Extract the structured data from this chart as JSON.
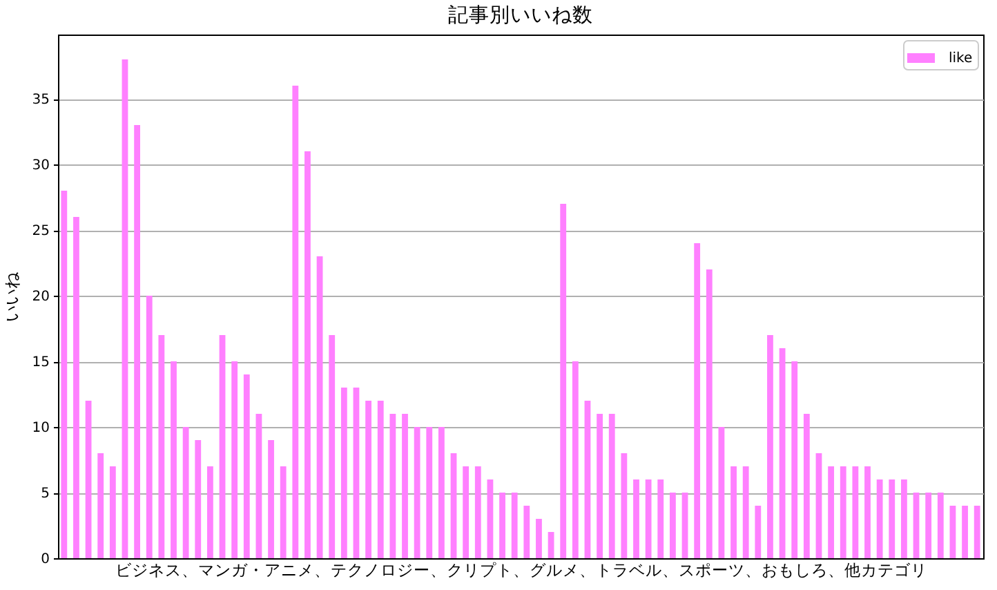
{
  "chart_data": {
    "type": "bar",
    "title": "記事別いいね数",
    "xlabel": "ビジネス、マンガ・アニメ、テクノロジー、クリプト、グルメ、トラベル、スポーツ、おもしろ、他カテゴリ",
    "ylabel": "いいね",
    "categories": [
      null,
      null,
      null,
      null,
      null,
      null,
      null,
      null,
      null,
      null,
      null,
      null,
      null,
      null,
      null,
      null,
      null,
      null,
      null,
      null,
      null,
      null,
      null,
      null,
      null,
      null,
      null,
      null,
      null,
      null,
      null,
      null,
      null,
      null,
      null,
      null,
      null,
      null,
      null,
      null,
      null,
      null,
      null,
      null,
      null,
      null,
      null,
      null,
      null,
      null,
      null,
      null,
      null,
      null,
      null,
      null,
      null,
      null,
      null,
      null,
      null,
      null,
      null,
      null,
      null,
      null,
      null,
      null,
      null,
      null,
      null,
      null,
      null,
      null,
      null,
      null
    ],
    "series": [
      {
        "name": "like",
        "color": "#ff80ff",
        "values": [
          28,
          26,
          12,
          8,
          7,
          38,
          33,
          20,
          17,
          15,
          10,
          9,
          7,
          17,
          15,
          14,
          11,
          9,
          7,
          36,
          31,
          23,
          17,
          13,
          13,
          12,
          12,
          11,
          11,
          10,
          10,
          10,
          8,
          7,
          7,
          6,
          5,
          5,
          4,
          3,
          2,
          27,
          15,
          12,
          11,
          11,
          8,
          6,
          6,
          6,
          5,
          5,
          24,
          22,
          10,
          7,
          7,
          4,
          17,
          16,
          15,
          11,
          8,
          7,
          7,
          7,
          7,
          6,
          6,
          6,
          5,
          5,
          5,
          4,
          4,
          4
        ]
      }
    ],
    "ylim": [
      0,
      39.9
    ],
    "yticks": [
      0,
      5,
      10,
      15,
      20,
      25,
      30,
      35
    ],
    "grid": "y",
    "legend": "top right",
    "tick_labels": "y"
  }
}
